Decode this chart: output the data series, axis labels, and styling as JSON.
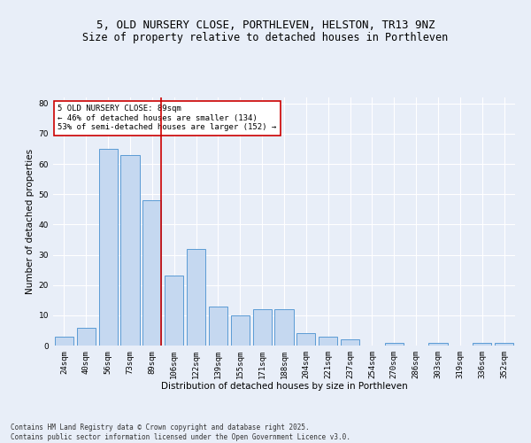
{
  "title": "5, OLD NURSERY CLOSE, PORTHLEVEN, HELSTON, TR13 9NZ",
  "subtitle": "Size of property relative to detached houses in Porthleven",
  "xlabel": "Distribution of detached houses by size in Porthleven",
  "ylabel": "Number of detached properties",
  "categories": [
    "24sqm",
    "40sqm",
    "56sqm",
    "73sqm",
    "89sqm",
    "106sqm",
    "122sqm",
    "139sqm",
    "155sqm",
    "171sqm",
    "188sqm",
    "204sqm",
    "221sqm",
    "237sqm",
    "254sqm",
    "270sqm",
    "286sqm",
    "303sqm",
    "319sqm",
    "336sqm",
    "352sqm"
  ],
  "values": [
    3,
    6,
    65,
    63,
    48,
    23,
    32,
    13,
    10,
    12,
    12,
    4,
    3,
    2,
    0,
    1,
    0,
    1,
    0,
    1,
    1
  ],
  "bar_color": "#c5d8f0",
  "bar_edge_color": "#5b9bd5",
  "vline_x_index": 4,
  "vline_color": "#cc0000",
  "ylim": [
    0,
    82
  ],
  "yticks": [
    0,
    10,
    20,
    30,
    40,
    50,
    60,
    70,
    80
  ],
  "annotation_text": "5 OLD NURSERY CLOSE: 89sqm\n← 46% of detached houses are smaller (134)\n53% of semi-detached houses are larger (152) →",
  "annotation_box_color": "#ffffff",
  "annotation_box_edge": "#cc0000",
  "footer_text": "Contains HM Land Registry data © Crown copyright and database right 2025.\nContains public sector information licensed under the Open Government Licence v3.0.",
  "background_color": "#e8eef8",
  "plot_background_color": "#e8eef8",
  "grid_color": "#ffffff",
  "title_fontsize": 9,
  "subtitle_fontsize": 8.5,
  "axis_label_fontsize": 7.5,
  "tick_fontsize": 6.5,
  "annotation_fontsize": 6.5,
  "footer_fontsize": 5.5
}
